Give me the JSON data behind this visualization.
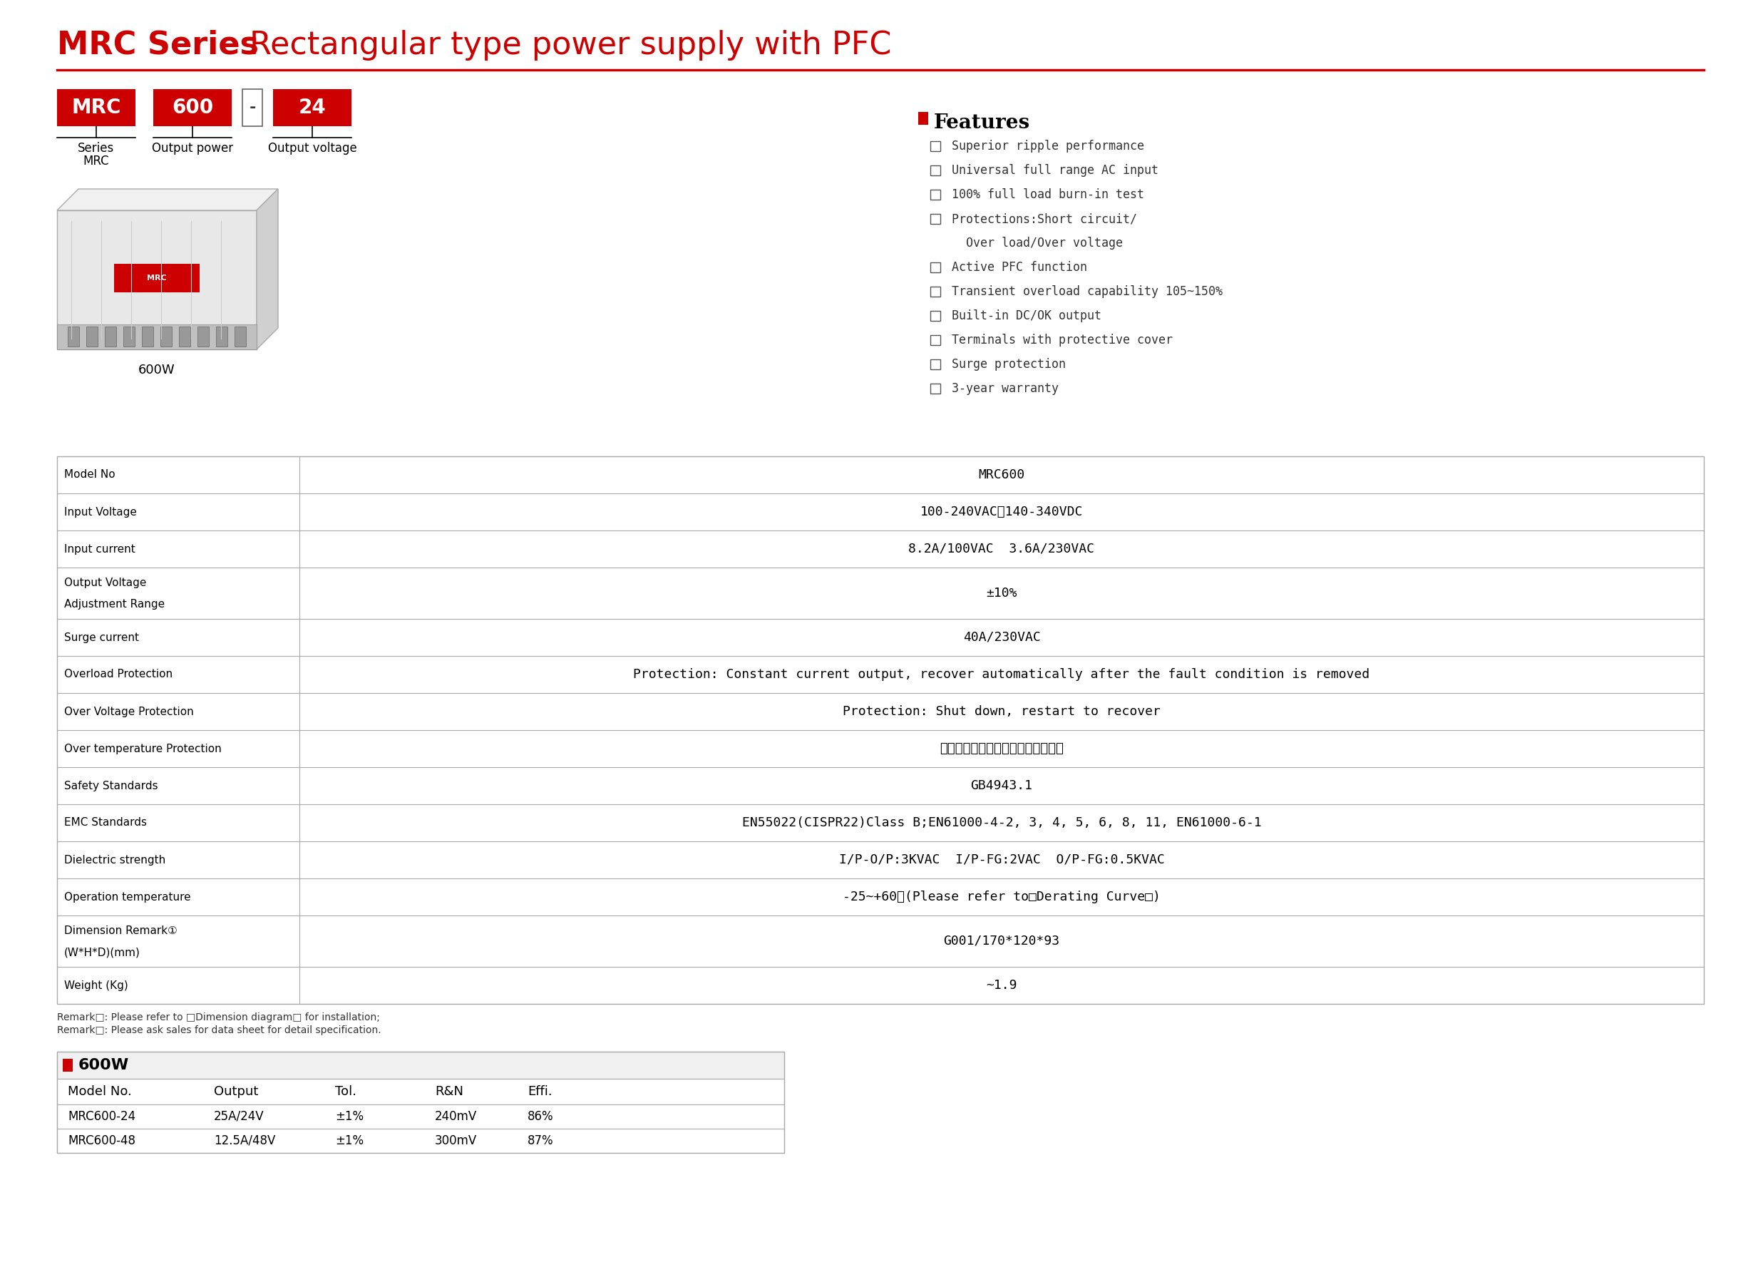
{
  "title_bold": "MRC Series",
  "title_regular": "  Rectangular type power supply with PFC",
  "title_color": "#cc0000",
  "line_color": "#cc0000",
  "bg_color": "#ffffff",
  "features_title": "Features",
  "features": [
    "Superior ripple performance",
    "Universal full range AC input",
    "100% full load burn-in test",
    "Protections:Short circuit/",
    "  Over load/Over voltage",
    "Active PFC function",
    "Transient overload capability 105~150%",
    "Built-in DC/OK output",
    "Terminals with protective cover",
    "Surge protection",
    "3-year warranty"
  ],
  "features_has_checkbox": [
    true,
    true,
    true,
    true,
    false,
    true,
    true,
    true,
    true,
    true,
    true
  ],
  "table_rows": [
    [
      "Model No",
      "MRC600"
    ],
    [
      "Input Voltage",
      "100-240VAC或140-340VDC"
    ],
    [
      "Input current",
      "8.2A/100VAC  3.6A/230VAC"
    ],
    [
      "Output Voltage\nAdjustment Range",
      "±10%"
    ],
    [
      "Surge current",
      "40A/230VAC"
    ],
    [
      "Overload Protection",
      "Protection: Constant current output, recover automatically after the fault condition is removed"
    ],
    [
      "Over Voltage Protection",
      "Protection: Shut down, restart to recover"
    ],
    [
      "Over temperature Protection",
      "关断输出，温度恢复正常后自动恢复"
    ],
    [
      "Safety Standards",
      "GB4943.1"
    ],
    [
      "EMC Standards",
      "EN55022(CISPR22)Class B;EN61000-4-2, 3, 4, 5, 6, 8, 11, EN61000-6-1"
    ],
    [
      "Dielectric strength",
      "I/P-O/P:3KVAC  I/P-FG:2VAC  O/P-FG:0.5KVAC"
    ],
    [
      "Operation temperature",
      "-25~+60℃(Please refer to□Derating Curve□)"
    ],
    [
      "Dimension Remark①\n(W*H*D)(mm)",
      "G001/170*120*93"
    ],
    [
      "Weight (Kg)",
      "~1.9"
    ]
  ],
  "remark_text1": "Remark□: Please refer to □Dimension diagram□ for installation;",
  "remark_text2": "Remark□: Please ask sales for data sheet for detail specification.",
  "bottom_table_title": "600W",
  "bottom_table_headers": [
    "Model No.",
    "Output",
    "Tol.",
    "R&N",
    "Effi."
  ],
  "bottom_table_rows": [
    [
      "MRC600-24",
      "25A/24V",
      "±1%",
      "240mV",
      "86%"
    ],
    [
      "MRC600-48",
      "12.5A/48V",
      "±1%",
      "300mV",
      "87%"
    ]
  ]
}
